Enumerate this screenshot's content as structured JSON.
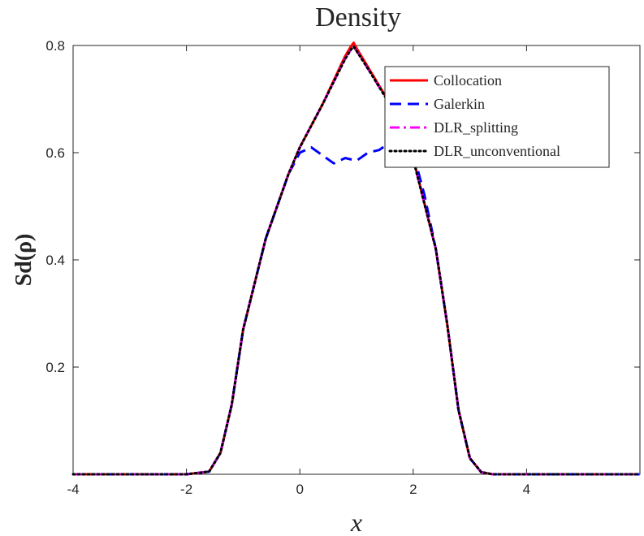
{
  "chart_data": {
    "type": "line",
    "title": "Density",
    "xlabel": "x",
    "ylabel": "Sd(ρ)",
    "xlim": [
      -4,
      6
    ],
    "ylim": [
      0,
      0.8
    ],
    "xticks": [
      -4,
      -2,
      0,
      2,
      4
    ],
    "xtick_labels": [
      "-4",
      "-2",
      "0",
      "2",
      "4"
    ],
    "yticks": [
      0.2,
      0.4,
      0.6,
      0.8
    ],
    "ytick_labels": [
      "0.2",
      "0.4",
      "0.6",
      "0.8"
    ],
    "grid": false,
    "legend_position": "top-right",
    "series": [
      {
        "name": "Collocation",
        "color": "#ff0000",
        "style": "solid",
        "x": [
          -4,
          -2,
          -1.6,
          -1.4,
          -1.2,
          -1.0,
          -0.6,
          -0.2,
          0.0,
          0.4,
          0.8,
          0.9,
          0.95,
          1.0,
          1.2,
          1.6,
          2.0,
          2.4,
          2.6,
          2.8,
          3.0,
          3.2,
          3.4,
          6.0
        ],
        "y": [
          0,
          0,
          0.005,
          0.04,
          0.13,
          0.27,
          0.44,
          0.56,
          0.61,
          0.69,
          0.78,
          0.798,
          0.805,
          0.795,
          0.76,
          0.69,
          0.59,
          0.42,
          0.28,
          0.12,
          0.03,
          0.004,
          0,
          0
        ]
      },
      {
        "name": "Galerkin",
        "color": "#0000ff",
        "style": "dashed",
        "x": [
          -4,
          -2,
          -1.6,
          -1.4,
          -1.2,
          -1.0,
          -0.6,
          -0.2,
          0.0,
          0.2,
          0.4,
          0.6,
          0.8,
          1.0,
          1.2,
          1.4,
          1.6,
          1.8,
          2.0,
          2.2,
          2.4,
          2.6,
          2.8,
          3.0,
          3.2,
          3.4,
          6.0
        ],
        "y": [
          0,
          0,
          0.005,
          0.04,
          0.13,
          0.27,
          0.44,
          0.56,
          0.6,
          0.61,
          0.595,
          0.58,
          0.59,
          0.585,
          0.6,
          0.605,
          0.62,
          0.63,
          0.6,
          0.52,
          0.42,
          0.28,
          0.12,
          0.03,
          0.004,
          0,
          0
        ]
      },
      {
        "name": "DLR_splitting",
        "color": "#ff00ff",
        "style": "dashdot",
        "x": [
          -4,
          -2,
          -1.6,
          -1.4,
          -1.2,
          -1.0,
          -0.6,
          -0.2,
          0.0,
          0.4,
          0.8,
          0.9,
          0.95,
          1.0,
          1.2,
          1.6,
          2.0,
          2.4,
          2.6,
          2.8,
          3.0,
          3.2,
          3.4,
          6.0
        ],
        "y": [
          0,
          0,
          0.005,
          0.04,
          0.13,
          0.27,
          0.44,
          0.56,
          0.61,
          0.69,
          0.775,
          0.792,
          0.798,
          0.79,
          0.757,
          0.688,
          0.588,
          0.42,
          0.28,
          0.12,
          0.03,
          0.004,
          0,
          0
        ]
      },
      {
        "name": "DLR_unconventional",
        "color": "#000000",
        "style": "dotted",
        "x": [
          -4,
          -2,
          -1.6,
          -1.4,
          -1.2,
          -1.0,
          -0.6,
          -0.2,
          0.0,
          0.4,
          0.8,
          0.9,
          0.95,
          1.0,
          1.2,
          1.6,
          2.0,
          2.4,
          2.6,
          2.8,
          3.0,
          3.2,
          3.4,
          6.0
        ],
        "y": [
          0,
          0,
          0.005,
          0.04,
          0.13,
          0.27,
          0.44,
          0.56,
          0.61,
          0.69,
          0.775,
          0.792,
          0.798,
          0.79,
          0.757,
          0.688,
          0.588,
          0.42,
          0.28,
          0.12,
          0.03,
          0.004,
          0,
          0
        ]
      }
    ]
  }
}
